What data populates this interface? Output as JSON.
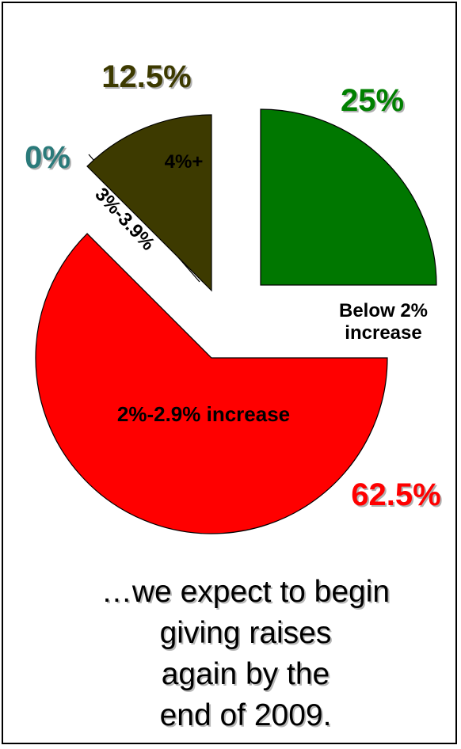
{
  "chart_data": {
    "type": "pie",
    "exploded": true,
    "title": "",
    "slices": [
      {
        "category": "Below 2% increase",
        "label_lines": [
          "Below 2%",
          "increase"
        ],
        "value": 25,
        "value_label": "25%",
        "color": "#007700",
        "value_color": "#008000"
      },
      {
        "category": "2%-2.9% increase",
        "label_lines": [
          "2%-2.9% increase"
        ],
        "value": 62.5,
        "value_label": "62.5%",
        "color": "#ff0000",
        "value_color": "#ff0000"
      },
      {
        "category": "3%-3.9%",
        "label_lines": [
          "3%-3.9%"
        ],
        "value": 0,
        "value_label": "0%",
        "color": "#ffffff",
        "value_color": "#2a7a7a"
      },
      {
        "category": "4%+",
        "label_lines": [
          "4%+"
        ],
        "value": 12.5,
        "value_label": "12.5%",
        "color": "#3d3a00",
        "value_color": "#3d3a00"
      }
    ]
  },
  "caption": {
    "line1": "…we expect to begin",
    "line2": "giving raises",
    "line3": "again by the",
    "line4": "end of 2009."
  }
}
